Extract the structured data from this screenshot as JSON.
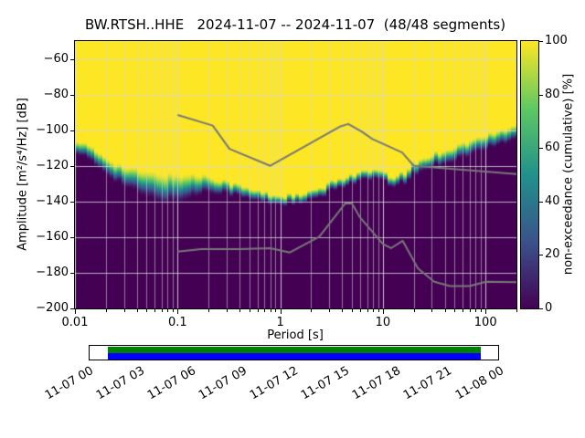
{
  "figure": {
    "background": "#ffffff"
  },
  "chart_data": {
    "type": "heatmap",
    "title": "BW.RTSH..HHE   2024-11-07 -- 2024-11-07  (48/48 segments)",
    "station": "BW.RTSH..HHE",
    "date_range": "2024-11-07 -- 2024-11-07",
    "segments": "48/48 segments",
    "xlabel": "Period [s]",
    "ylabel": "Amplitude [m²/s⁴/Hz] [dB]",
    "x_scale": "log",
    "xlim": [
      0.01,
      200
    ],
    "ylim": [
      -200,
      -50
    ],
    "xticks": [
      0.01,
      0.1,
      1,
      10,
      100
    ],
    "xtick_labels": [
      "0.01",
      "0.1",
      "1",
      "10",
      "100"
    ],
    "yticks": [
      -60,
      -80,
      -100,
      -120,
      -140,
      -160,
      -180,
      -200
    ],
    "ytick_labels": [
      "−60",
      "−80",
      "−100",
      "−120",
      "−140",
      "−160",
      "−180",
      "−200"
    ],
    "grid": true,
    "colorbar": {
      "label": "non-exceedance (cumulative) [%]",
      "ticks": [
        0,
        20,
        40,
        60,
        80,
        100
      ],
      "lim": [
        0,
        100
      ],
      "colormap": "viridis",
      "colors": {
        "0": "#440154",
        "25": "#3b528b",
        "50": "#21918c",
        "75": "#5ec962",
        "100": "#fde725"
      }
    },
    "distribution_boundary": {
      "description": "PPSD cumulative distribution: [period s, 50% level dB, transition half-width dB]; above = 100% (yellow), below = 0% (dark purple)",
      "points": [
        [
          0.01,
          -108,
          4
        ],
        [
          0.018,
          -118,
          5
        ],
        [
          0.03,
          -126,
          6
        ],
        [
          0.05,
          -131,
          8
        ],
        [
          0.08,
          -133,
          9
        ],
        [
          0.12,
          -132,
          8
        ],
        [
          0.2,
          -130,
          5
        ],
        [
          0.3,
          -132,
          4
        ],
        [
          0.5,
          -136,
          3.5
        ],
        [
          0.9,
          -139,
          3
        ],
        [
          1.6,
          -139,
          3
        ],
        [
          2.5,
          -135,
          3
        ],
        [
          4,
          -129,
          3
        ],
        [
          6,
          -126,
          3
        ],
        [
          9,
          -125,
          3
        ],
        [
          12,
          -129,
          3
        ],
        [
          16,
          -127,
          3.5
        ],
        [
          20,
          -122,
          4
        ],
        [
          30,
          -117,
          4
        ],
        [
          50,
          -113,
          4.5
        ],
        [
          100,
          -107,
          4.5
        ],
        [
          200,
          -101,
          4.5
        ]
      ]
    },
    "noise_models": {
      "color": "#787878",
      "nhnm": [
        [
          0.1,
          -91.5
        ],
        [
          0.22,
          -97.4
        ],
        [
          0.32,
          -110.5
        ],
        [
          0.8,
          -120.0
        ],
        [
          3.8,
          -98.0
        ],
        [
          4.6,
          -96.5
        ],
        [
          6.3,
          -101.0
        ],
        [
          7.9,
          -105.0
        ],
        [
          15.4,
          -112.5
        ],
        [
          20.0,
          -120.0
        ],
        [
          200.0,
          -124.6
        ]
      ],
      "nlnm": [
        [
          0.1,
          -168.1
        ],
        [
          0.17,
          -166.7
        ],
        [
          0.4,
          -166.7
        ],
        [
          0.8,
          -166.2
        ],
        [
          1.24,
          -168.6
        ],
        [
          2.4,
          -159.7
        ],
        [
          4.3,
          -141.1
        ],
        [
          5.0,
          -141.1
        ],
        [
          6.0,
          -149.0
        ],
        [
          10.0,
          -163.8
        ],
        [
          12.0,
          -166.2
        ],
        [
          15.6,
          -162.1
        ],
        [
          21.9,
          -177.5
        ],
        [
          31.6,
          -185.0
        ],
        [
          45.0,
          -187.5
        ],
        [
          70.0,
          -187.5
        ],
        [
          101.0,
          -185.0
        ],
        [
          200.0,
          -185.3
        ]
      ]
    },
    "coverage_bar": {
      "border_color": "#000000",
      "background": "#ffffff",
      "segments": [
        {
          "name": "data-present",
          "color": "#008000",
          "row": "top",
          "start_frac": 0.045,
          "end_frac": 0.958
        },
        {
          "name": "data-used",
          "color": "#0000ff",
          "row": "bottom",
          "start_frac": 0.045,
          "end_frac": 0.958
        }
      ]
    },
    "time_axis": {
      "rotation_deg": 30,
      "labels": [
        "11-07 00",
        "11-07 03",
        "11-07 06",
        "11-07 09",
        "11-07 12",
        "11-07 15",
        "11-07 18",
        "11-07 21",
        "11-08 00"
      ]
    }
  }
}
